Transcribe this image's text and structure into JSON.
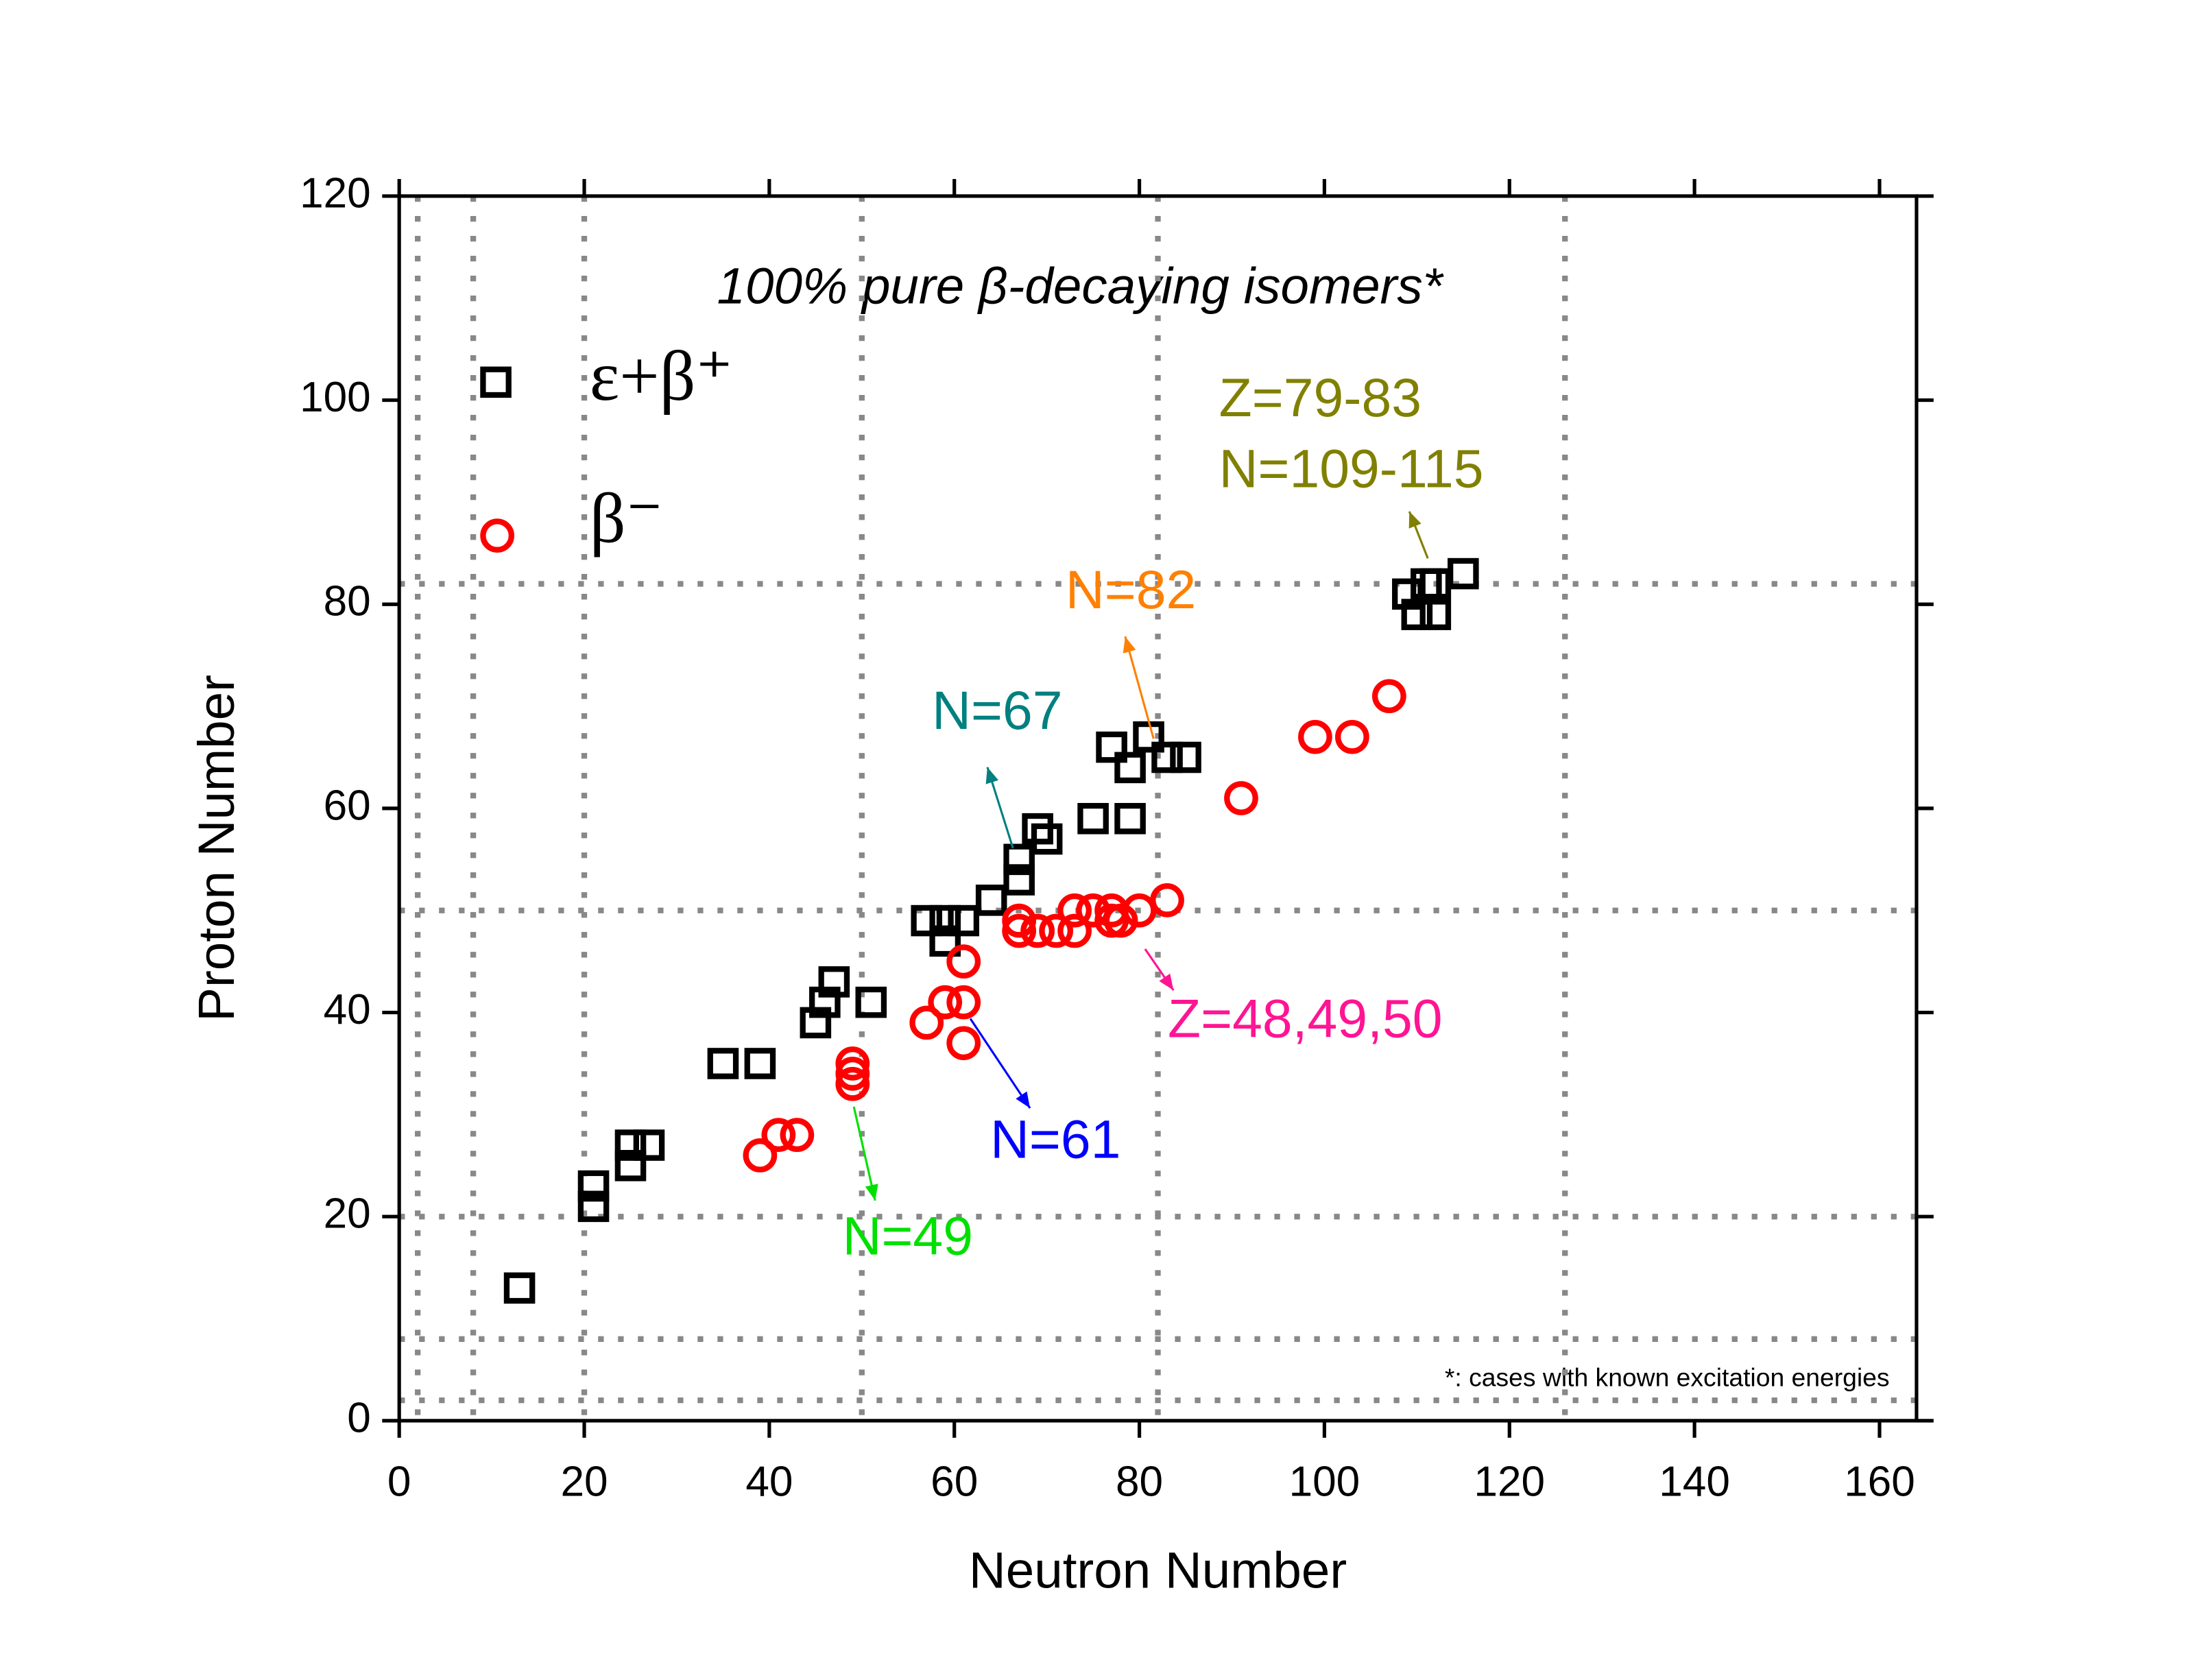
{
  "chart_data": {
    "type": "scatter",
    "title": "100% pure β-decaying isomers*",
    "xlabel": "Neutron Number",
    "ylabel": "Proton Number",
    "xlim": [
      0,
      164
    ],
    "ylim": [
      0,
      120
    ],
    "xticks": [
      0,
      20,
      40,
      60,
      80,
      100,
      120,
      140,
      160
    ],
    "yticks": [
      0,
      20,
      40,
      60,
      80,
      100,
      120
    ],
    "xgrid": [
      2,
      8,
      20,
      50,
      82,
      126
    ],
    "ygrid": [
      2,
      8,
      20,
      50,
      82
    ],
    "series": [
      {
        "name": "ε+β⁺",
        "marker": "square",
        "color": "#000000",
        "x": [
          13,
          21,
          21,
          25,
          25,
          27,
          35,
          39,
          45,
          46,
          47,
          51,
          57,
          59,
          59,
          61,
          64,
          67,
          67,
          69,
          70,
          75,
          79,
          77,
          79,
          81,
          83,
          85,
          109,
          110,
          111,
          112,
          112,
          115
        ],
        "values": [
          13,
          21,
          23,
          25,
          27,
          27,
          35,
          35,
          39,
          41,
          43,
          41,
          49,
          47,
          49,
          49,
          51,
          53,
          55,
          58,
          57,
          59,
          59,
          66,
          64,
          67,
          65,
          65,
          81,
          79,
          82,
          79,
          82,
          83
        ]
      },
      {
        "name": "β⁻",
        "marker": "circle",
        "color": "#ff0000",
        "x": [
          39,
          41,
          43,
          49,
          49,
          49,
          57,
          59,
          61,
          61,
          61,
          67,
          67,
          69,
          71,
          73,
          73,
          75,
          77,
          77,
          78,
          80,
          83,
          91,
          99,
          103,
          107
        ],
        "values": [
          26,
          28,
          28,
          35,
          34,
          33,
          39,
          41,
          41,
          37,
          45,
          49,
          48,
          48,
          48,
          48,
          50,
          50,
          49,
          50,
          49,
          50,
          51,
          61,
          67,
          67,
          71
        ]
      }
    ],
    "annotations": [
      {
        "text": "Z=79-83",
        "color": "#808000"
      },
      {
        "text": "N=109-115",
        "color": "#808000"
      },
      {
        "text": "N=82",
        "color": "#ff8000"
      },
      {
        "text": "N=67",
        "color": "#008080"
      },
      {
        "text": "Z=48,49,50",
        "color": "#ff1493"
      },
      {
        "text": "N=61",
        "color": "#0000ff"
      },
      {
        "text": "N=49",
        "color": "#00e000"
      }
    ],
    "footnote": "*: cases with known excitation energies"
  }
}
